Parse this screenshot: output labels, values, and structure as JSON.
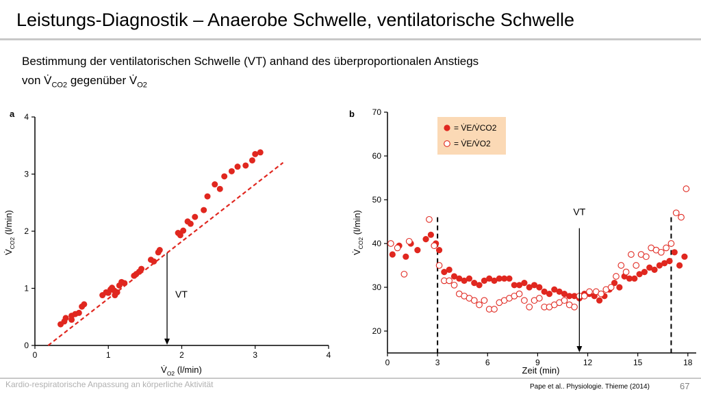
{
  "slide": {
    "title": "Leistungs-Diagnostik – Anaerobe Schwelle, ventilatorische Schwelle",
    "subtitle_line1": "Bestimmung der ventilatorischen Schwelle (VT) anhand des überproportionalen Anstiegs",
    "subtitle_line2_pre": "von V̇",
    "subtitle_line2_sub1": "CO2",
    "subtitle_line2_mid": " gegenüber V̇",
    "subtitle_line2_sub2": "O2",
    "footer_left": "Kardio-respiratorische Anpassung an körperliche Aktivität",
    "citation": "Pape et al.. Physiologie. Thieme (2014)",
    "page_number": "67"
  },
  "chart_data": [
    {
      "panel": "a",
      "type": "scatter",
      "xlabel": "V̇O2 (l/min)",
      "ylabel": "V̇CO2 (l/min)",
      "xlim": [
        0,
        4
      ],
      "ylim": [
        0,
        4
      ],
      "xticks": [
        "0",
        "1",
        "2",
        "3",
        "4"
      ],
      "yticks": [
        "0",
        "1",
        "2",
        "3",
        "4"
      ],
      "annotation": "VT",
      "vt_x": 1.8,
      "color": "#e0271f",
      "points": [
        [
          0.35,
          0.37
        ],
        [
          0.4,
          0.42
        ],
        [
          0.42,
          0.48
        ],
        [
          0.5,
          0.45
        ],
        [
          0.5,
          0.52
        ],
        [
          0.55,
          0.55
        ],
        [
          0.6,
          0.57
        ],
        [
          0.64,
          0.68
        ],
        [
          0.67,
          0.72
        ],
        [
          0.92,
          0.88
        ],
        [
          0.97,
          0.93
        ],
        [
          1.0,
          0.92
        ],
        [
          1.03,
          0.98
        ],
        [
          1.05,
          1.01
        ],
        [
          1.08,
          0.96
        ],
        [
          1.09,
          0.88
        ],
        [
          1.12,
          0.93
        ],
        [
          1.15,
          1.05
        ],
        [
          1.18,
          1.11
        ],
        [
          1.22,
          1.09
        ],
        [
          1.35,
          1.22
        ],
        [
          1.38,
          1.25
        ],
        [
          1.42,
          1.29
        ],
        [
          1.45,
          1.34
        ],
        [
          1.58,
          1.5
        ],
        [
          1.62,
          1.47
        ],
        [
          1.68,
          1.63
        ],
        [
          1.7,
          1.67
        ],
        [
          1.95,
          1.97
        ],
        [
          1.98,
          1.93
        ],
        [
          2.02,
          2.01
        ],
        [
          2.08,
          2.17
        ],
        [
          2.12,
          2.13
        ],
        [
          2.18,
          2.25
        ],
        [
          2.3,
          2.37
        ],
        [
          2.35,
          2.61
        ],
        [
          2.45,
          2.82
        ],
        [
          2.52,
          2.74
        ],
        [
          2.58,
          2.96
        ],
        [
          2.68,
          3.05
        ],
        [
          2.76,
          3.13
        ],
        [
          2.87,
          3.15
        ],
        [
          2.96,
          3.24
        ],
        [
          3.0,
          3.35
        ],
        [
          3.07,
          3.38
        ]
      ],
      "trend": [
        [
          0.18,
          0.0
        ],
        [
          3.38,
          3.2
        ]
      ]
    },
    {
      "panel": "b",
      "type": "scatter",
      "xlabel": "Zeit (min)",
      "ylabel": "V̇CO2 (l/min)",
      "xlim": [
        0,
        18.5
      ],
      "ylim": [
        15,
        70
      ],
      "xticks": [
        "0",
        "3",
        "6",
        "9",
        "12",
        "15",
        "18"
      ],
      "yticks": [
        "20",
        "30",
        "40",
        "50",
        "60",
        "70"
      ],
      "annotation": "VT",
      "vt_x": 11.5,
      "dashed_lines_x": [
        3,
        17
      ],
      "legend": [
        "= V̇E/V̇CO2",
        "= V̇E/V̇O2"
      ],
      "legend_position": "top-left",
      "series": [
        {
          "name": "V̇E/V̇CO2",
          "style": "filled",
          "color": "#e0271f",
          "points": [
            [
              0.3,
              37.5
            ],
            [
              0.7,
              39.5
            ],
            [
              1.1,
              37.0
            ],
            [
              1.4,
              40.0
            ],
            [
              1.8,
              38.5
            ],
            [
              2.3,
              41.0
            ],
            [
              2.6,
              42.0
            ],
            [
              2.9,
              40.0
            ],
            [
              3.1,
              38.5
            ],
            [
              3.4,
              33.5
            ],
            [
              3.7,
              34.0
            ],
            [
              4.0,
              32.5
            ],
            [
              4.3,
              32.0
            ],
            [
              4.6,
              31.5
            ],
            [
              4.9,
              32.0
            ],
            [
              5.2,
              31.0
            ],
            [
              5.5,
              30.5
            ],
            [
              5.8,
              31.5
            ],
            [
              6.1,
              32.0
            ],
            [
              6.4,
              31.5
            ],
            [
              6.7,
              32.0
            ],
            [
              7.0,
              32.0
            ],
            [
              7.3,
              32.0
            ],
            [
              7.6,
              30.5
            ],
            [
              7.9,
              30.5
            ],
            [
              8.2,
              31.0
            ],
            [
              8.5,
              30.0
            ],
            [
              8.8,
              30.5
            ],
            [
              9.1,
              30.0
            ],
            [
              9.4,
              29.0
            ],
            [
              9.7,
              28.5
            ],
            [
              10.0,
              29.5
            ],
            [
              10.3,
              29.0
            ],
            [
              10.6,
              28.5
            ],
            [
              10.9,
              28.0
            ],
            [
              11.2,
              28.0
            ],
            [
              11.5,
              27.5
            ],
            [
              11.8,
              28.5
            ],
            [
              12.1,
              28.5
            ],
            [
              12.4,
              28.0
            ],
            [
              12.7,
              27.0
            ],
            [
              13.0,
              28.0
            ],
            [
              13.3,
              29.5
            ],
            [
              13.6,
              31.0
            ],
            [
              13.9,
              30.0
            ],
            [
              14.2,
              32.5
            ],
            [
              14.5,
              32.0
            ],
            [
              14.8,
              32.0
            ],
            [
              15.1,
              33.0
            ],
            [
              15.4,
              33.5
            ],
            [
              15.7,
              34.5
            ],
            [
              16.0,
              34.0
            ],
            [
              16.3,
              35.0
            ],
            [
              16.6,
              35.5
            ],
            [
              16.9,
              36.0
            ],
            [
              17.2,
              38.0
            ],
            [
              17.5,
              35.0
            ],
            [
              17.8,
              37.0
            ]
          ]
        },
        {
          "name": "V̇E/V̇O2",
          "style": "open",
          "color": "#e0271f",
          "points": [
            [
              0.2,
              40.0
            ],
            [
              0.6,
              39.0
            ],
            [
              1.0,
              33.0
            ],
            [
              1.3,
              40.5
            ],
            [
              2.5,
              45.5
            ],
            [
              2.8,
              39.5
            ],
            [
              3.1,
              35.0
            ],
            [
              3.4,
              31.5
            ],
            [
              3.7,
              31.5
            ],
            [
              4.0,
              30.5
            ],
            [
              4.3,
              28.5
            ],
            [
              4.6,
              28.0
            ],
            [
              4.9,
              27.5
            ],
            [
              5.2,
              27.0
            ],
            [
              5.5,
              26.0
            ],
            [
              5.8,
              27.0
            ],
            [
              6.1,
              25.0
            ],
            [
              6.4,
              25.0
            ],
            [
              6.7,
              26.5
            ],
            [
              7.0,
              27.0
            ],
            [
              7.3,
              27.5
            ],
            [
              7.6,
              28.0
            ],
            [
              7.9,
              28.5
            ],
            [
              8.2,
              27.0
            ],
            [
              8.5,
              25.5
            ],
            [
              8.8,
              27.0
            ],
            [
              9.1,
              27.5
            ],
            [
              9.4,
              25.5
            ],
            [
              9.7,
              25.5
            ],
            [
              10.0,
              26.0
            ],
            [
              10.3,
              26.5
            ],
            [
              10.6,
              27.0
            ],
            [
              10.9,
              26.0
            ],
            [
              11.2,
              25.5
            ],
            [
              11.5,
              28.0
            ],
            [
              11.8,
              28.0
            ],
            [
              12.1,
              29.0
            ],
            [
              12.5,
              29.0
            ],
            [
              12.8,
              28.5
            ],
            [
              13.1,
              29.5
            ],
            [
              13.4,
              30.0
            ],
            [
              13.7,
              32.5
            ],
            [
              14.0,
              35.0
            ],
            [
              14.3,
              33.5
            ],
            [
              14.6,
              37.5
            ],
            [
              14.9,
              35.0
            ],
            [
              15.2,
              37.5
            ],
            [
              15.5,
              37.0
            ],
            [
              15.8,
              39.0
            ],
            [
              16.1,
              38.5
            ],
            [
              16.4,
              38.0
            ],
            [
              16.7,
              39.0
            ],
            [
              17.0,
              40.0
            ],
            [
              17.3,
              47.0
            ],
            [
              17.6,
              46.0
            ],
            [
              17.9,
              52.5
            ]
          ]
        }
      ]
    }
  ]
}
